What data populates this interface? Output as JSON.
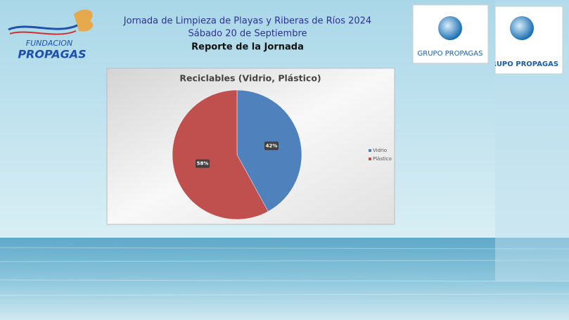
{
  "header": {
    "line1": "Jornada de Limpieza de Playas y Riberas de Ríos 2024",
    "line2": "Sábado 20 de Septiembre",
    "line3": "Reporte de la Jornada"
  },
  "logos": {
    "fundacion_top": "FUNDACION",
    "fundacion_bottom": "PROPAGAS",
    "grupo_1": "GRUPO PROPAGAS",
    "grupo_2": "GRUPO PROPAGAS"
  },
  "chart_data": {
    "type": "pie",
    "title": "Reciclables (Vidrio, Plástico)",
    "categories": [
      "Vidrio",
      "Plástico"
    ],
    "values": [
      42,
      58
    ],
    "value_labels": [
      "42%",
      "58%"
    ],
    "colors": [
      "#4f81bd",
      "#c0504d"
    ],
    "legend_position": "right"
  }
}
